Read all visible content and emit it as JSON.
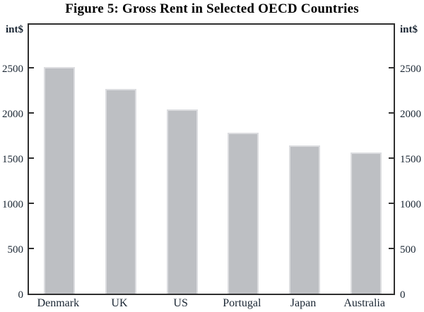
{
  "figure": {
    "title": "Figure 5: Gross Rent in Selected OECD Countries",
    "unit_left": "int$",
    "unit_right": "int$"
  },
  "chart_data": {
    "type": "bar",
    "title": "Figure 5: Gross Rent in Selected OECD Countries",
    "categories": [
      "Denmark",
      "UK",
      "US",
      "Portugal",
      "Japan",
      "Australia"
    ],
    "values": [
      2540,
      2290,
      2060,
      1800,
      1660,
      1580
    ],
    "xlabel": "",
    "ylabel": "int$",
    "ylabel_right": "int$",
    "yticks": [
      0,
      500,
      1000,
      1500,
      2000,
      2500
    ],
    "ylim": [
      0,
      3010
    ],
    "grid": false,
    "legend": "none",
    "bar_color": "#bdbfc3",
    "bar_border_color": "#dcdde0",
    "axis_color": "#2f2f2f",
    "text_color": "#1a2633"
  }
}
